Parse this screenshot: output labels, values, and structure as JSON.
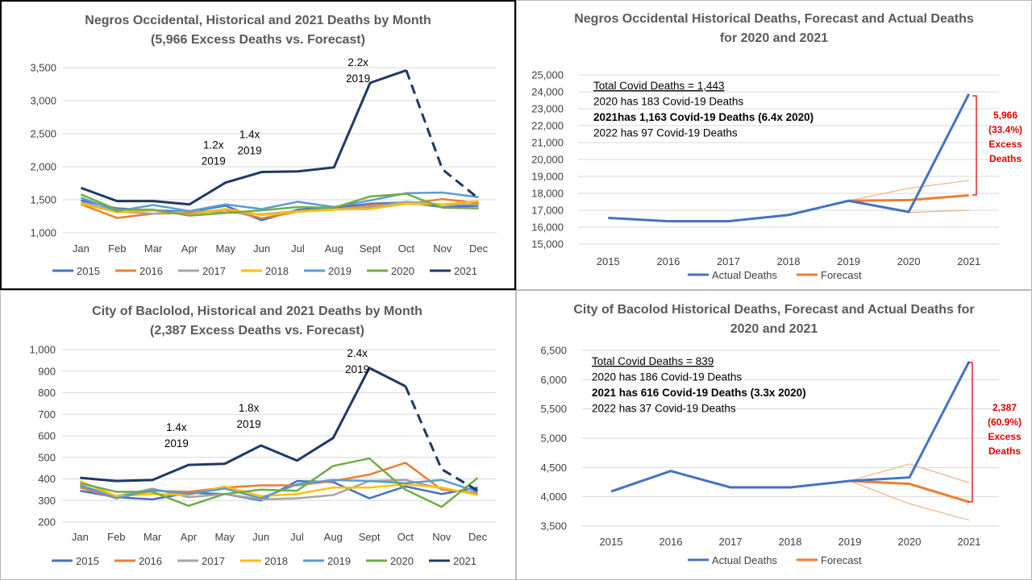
{
  "chart_data": [
    {
      "type": "line",
      "title": "Negros Occidental, Historical and 2021 Deaths by Month",
      "subtitle": "(5,966 Excess Deaths vs. Forecast)",
      "categories": [
        "Jan",
        "Feb",
        "Mar",
        "Apr",
        "May",
        "Jun",
        "Jul",
        "Aug",
        "Sept",
        "Oct",
        "Nov",
        "Dec"
      ],
      "ylim": [
        1000,
        3500
      ],
      "yticks": [
        "1,000",
        "1,500",
        "2,000",
        "2,500",
        "3,000",
        "3,500"
      ],
      "series": [
        {
          "name": "2015",
          "color": "#4472c4",
          "values": [
            1490,
            1370,
            1340,
            1320,
            1410,
            1190,
            1350,
            1380,
            1440,
            1460,
            1390,
            1410
          ]
        },
        {
          "name": "2016",
          "color": "#ed7d31",
          "values": [
            1430,
            1225,
            1290,
            1300,
            1350,
            1220,
            1320,
            1350,
            1420,
            1440,
            1510,
            1450
          ]
        },
        {
          "name": "2017",
          "color": "#a5a5a5",
          "values": [
            1460,
            1320,
            1290,
            1330,
            1310,
            1280,
            1330,
            1360,
            1390,
            1470,
            1430,
            1430
          ]
        },
        {
          "name": "2018",
          "color": "#ffc000",
          "values": [
            1440,
            1310,
            1340,
            1270,
            1360,
            1270,
            1320,
            1350,
            1360,
            1440,
            1430,
            1480
          ]
        },
        {
          "name": "2019",
          "color": "#5b9bd5",
          "values": [
            1530,
            1330,
            1420,
            1330,
            1430,
            1360,
            1470,
            1390,
            1490,
            1600,
            1610,
            1540
          ]
        },
        {
          "name": "2020",
          "color": "#70ad47",
          "values": [
            1580,
            1350,
            1350,
            1260,
            1300,
            1340,
            1390,
            1380,
            1550,
            1590,
            1380,
            1370
          ]
        },
        {
          "name": "2021",
          "color": "#1f3864",
          "values": [
            1680,
            1480,
            1480,
            1430,
            1760,
            1920,
            1930,
            1990,
            3270,
            3460,
            1960,
            1520
          ],
          "dashed_from": 9
        }
      ],
      "annotations": [
        {
          "lines": [
            "1.2x",
            "2019"
          ],
          "at": "May"
        },
        {
          "lines": [
            "1.4x",
            "2019"
          ],
          "at": "Jun"
        },
        {
          "lines": [
            "2.2x",
            "2019"
          ],
          "at": "Sept"
        }
      ]
    },
    {
      "type": "line",
      "title": "Negros Occidental Historical Deaths, Forecast and Actual Deaths",
      "subtitle": "for 2020 and 2021",
      "categories": [
        "2015",
        "2016",
        "2017",
        "2018",
        "2019",
        "2020",
        "2021"
      ],
      "ylim": [
        15000,
        25000
      ],
      "yticks": [
        "15,000",
        "16,000",
        "17,000",
        "18,000",
        "19,000",
        "20,000",
        "21,000",
        "22,000",
        "23,000",
        "24,000",
        "25,000"
      ],
      "series": [
        {
          "name": "Actual Deaths",
          "color": "#4472c4",
          "values": [
            16550,
            16350,
            16350,
            16720,
            17560,
            16900,
            23870
          ]
        },
        {
          "name": "Forecast",
          "color": "#ed7d31",
          "values": [
            null,
            null,
            null,
            null,
            17560,
            17600,
            17880
          ]
        },
        {
          "name": "Forecast upper",
          "color": "#f4b183",
          "values": [
            null,
            null,
            null,
            null,
            17560,
            18300,
            18760
          ],
          "thin": true
        },
        {
          "name": "Forecast lower",
          "color": "#f4b183",
          "values": [
            null,
            null,
            null,
            null,
            17560,
            16870,
            17000
          ],
          "thin": true
        },
        {
          "name": "Historical 2020",
          "color": "#a5a5a5",
          "values": [
            null,
            null,
            null,
            null,
            17560,
            16900,
            null
          ]
        }
      ],
      "textbox": [
        "Total Covid Deaths = 1,443",
        "2020 has 183 Covid-19 Deaths",
        "2021has 1,163 Covid-19 Deaths (6.4x 2020)",
        "2022 has 97 Covid-19 Deaths"
      ],
      "excess_label": [
        "5,966",
        "(33.4%)",
        "Excess",
        "Deaths"
      ],
      "legend": [
        "Actual Deaths",
        "Forecast"
      ]
    },
    {
      "type": "line",
      "title": "City of Baclolod, Historical and 2021 Deaths by Month",
      "subtitle": "(2,387 Excess Deaths vs. Forecast)",
      "categories": [
        "Jan",
        "Feb",
        "Mar",
        "Apr",
        "May",
        "Jun",
        "Jul",
        "Aug",
        "Sept",
        "Oct",
        "Nov",
        "Dec"
      ],
      "ylim": [
        200,
        1000
      ],
      "yticks": [
        "200",
        "300",
        "400",
        "500",
        "600",
        "700",
        "800",
        "900",
        "1,000"
      ],
      "series": [
        {
          "name": "2015",
          "color": "#4472c4",
          "values": [
            345,
            315,
            305,
            335,
            330,
            300,
            390,
            385,
            310,
            365,
            330,
            360
          ]
        },
        {
          "name": "2016",
          "color": "#ed7d31",
          "values": [
            360,
            310,
            345,
            340,
            360,
            370,
            370,
            390,
            420,
            475,
            350,
            335
          ]
        },
        {
          "name": "2017",
          "color": "#a5a5a5",
          "values": [
            370,
            320,
            355,
            315,
            330,
            305,
            310,
            325,
            390,
            395,
            355,
            330
          ]
        },
        {
          "name": "2018",
          "color": "#ffc000",
          "values": [
            390,
            320,
            330,
            325,
            365,
            320,
            330,
            360,
            360,
            375,
            360,
            325
          ]
        },
        {
          "name": "2019",
          "color": "#5b9bd5",
          "values": [
            370,
            310,
            350,
            330,
            355,
            310,
            375,
            395,
            390,
            380,
            395,
            340
          ]
        },
        {
          "name": "2020",
          "color": "#70ad47",
          "values": [
            380,
            340,
            340,
            275,
            330,
            350,
            345,
            460,
            495,
            350,
            270,
            405
          ]
        },
        {
          "name": "2021",
          "color": "#1f3864",
          "values": [
            405,
            390,
            395,
            465,
            470,
            555,
            485,
            590,
            915,
            830,
            445,
            345
          ],
          "dashed_from": 9
        }
      ],
      "annotations": [
        {
          "lines": [
            "1.4x",
            "2019"
          ],
          "at": "Apr"
        },
        {
          "lines": [
            "1.8x",
            "2019"
          ],
          "at": "Jun"
        },
        {
          "lines": [
            "2.4x",
            "2019"
          ],
          "at": "Sept"
        }
      ]
    },
    {
      "type": "line",
      "title": "City of Bacolod Historical Deaths, Forecast and Actual Deaths for",
      "subtitle": "2020 and 2021",
      "categories": [
        "2015",
        "2016",
        "2017",
        "2018",
        "2019",
        "2020",
        "2021"
      ],
      "ylim": [
        3500,
        6500
      ],
      "yticks": [
        "3,500",
        "4,000",
        "4,500",
        "5,000",
        "5,500",
        "6,000",
        "6,500"
      ],
      "series": [
        {
          "name": "Actual Deaths",
          "color": "#4472c4",
          "values": [
            4090,
            4440,
            4160,
            4160,
            4270,
            4330,
            6310
          ]
        },
        {
          "name": "Forecast",
          "color": "#ed7d31",
          "values": [
            null,
            null,
            null,
            null,
            4270,
            4220,
            3910
          ]
        },
        {
          "name": "Forecast upper",
          "color": "#f4b183",
          "values": [
            null,
            null,
            null,
            null,
            4270,
            4560,
            4240
          ],
          "thin": true
        },
        {
          "name": "Forecast lower",
          "color": "#f4b183",
          "values": [
            null,
            null,
            null,
            null,
            4270,
            3880,
            3600
          ],
          "thin": true
        }
      ],
      "textbox": [
        "Total Covid Deaths = 839",
        "2020 has 186 Covid-19 Deaths",
        "2021 has 616 Covid-19 Deaths (3.3x 2020)",
        "2022 has 37 Covid-19 Deaths"
      ],
      "excess_label": [
        "2,387",
        "(60.9%)",
        "Excess",
        "Deaths"
      ],
      "legend": [
        "Actual Deaths",
        "Forecast"
      ]
    }
  ]
}
